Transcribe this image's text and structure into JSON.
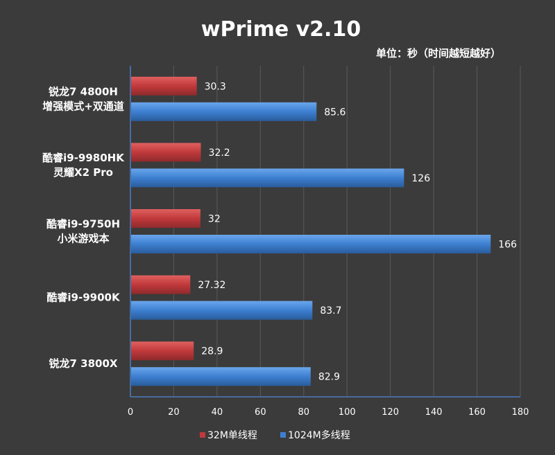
{
  "chart_data": {
    "type": "bar",
    "orientation": "horizontal",
    "title": "wPrime v2.10",
    "unit_note": "单位：秒（时间越短越好）",
    "categories": [
      [
        "锐龙7 4800H",
        "增强模式+双通道"
      ],
      [
        "酷睿i9-9980HK",
        "灵耀X2 Pro"
      ],
      [
        "酷睿i9-9750H",
        "小米游戏本"
      ],
      [
        "酷睿i9-9900K"
      ],
      [
        "锐龙7 3800X"
      ]
    ],
    "series": [
      {
        "name": "32M单线程",
        "color": "#c0393b",
        "values": [
          30.3,
          32.2,
          32,
          27.32,
          28.9
        ],
        "labels": [
          "30.3",
          "32.2",
          "32",
          "27.32",
          "28.9"
        ]
      },
      {
        "name": "1024M多线程",
        "color": "#3d7fd0",
        "values": [
          85.6,
          126,
          166,
          83.7,
          82.9
        ],
        "labels": [
          "85.6",
          "126",
          "166",
          "83.7",
          "82.9"
        ]
      }
    ],
    "xlim": [
      0,
      180
    ],
    "xticks": [
      "0",
      "20",
      "40",
      "60",
      "80",
      "100",
      "120",
      "140",
      "160",
      "180"
    ],
    "grid": true,
    "legend": "bottom"
  }
}
